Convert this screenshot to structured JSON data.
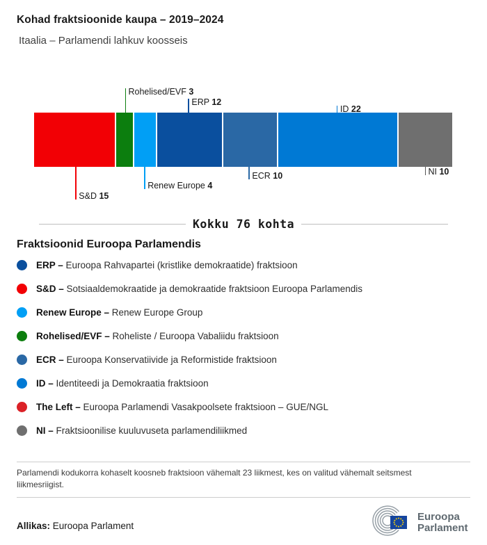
{
  "header": {
    "title": "Kohad fraktsioonide kaupa – 2019–2024",
    "subtitle": "Itaalia – Parlamendi lahkuv koosseis"
  },
  "chart_data": {
    "type": "bar",
    "subtype": "horizontal-stacked",
    "title": "Kohad fraktsioonide kaupa – 2019–2024",
    "total_seats": 76,
    "total_label": "Kokku 76 kohta",
    "segments": [
      {
        "group": "S&D",
        "seats": 15,
        "color": "#F20005",
        "label_side": "below"
      },
      {
        "group": "Rohelised/EVF",
        "seats": 3,
        "color": "#0C7E0E",
        "label_side": "above"
      },
      {
        "group": "Renew Europe",
        "seats": 4,
        "color": "#019FF5",
        "label_side": "below"
      },
      {
        "group": "ERP",
        "seats": 12,
        "color": "#0A4F9E",
        "label_side": "above"
      },
      {
        "group": "ECR",
        "seats": 10,
        "color": "#2A68A5",
        "label_side": "below"
      },
      {
        "group": "ID",
        "seats": 22,
        "color": "#0079D4",
        "label_side": "above"
      },
      {
        "group": "NI",
        "seats": 10,
        "color": "#6F6F6F",
        "label_side": "below",
        "line_color": "#555555"
      }
    ]
  },
  "legend": {
    "heading": "Fraktsioonid Euroopa Parlamendis",
    "items": [
      {
        "name": "ERP – ",
        "desc": "Euroopa Rahvapartei (kristlike demokraatide) fraktsioon",
        "color": "#0A4F9E"
      },
      {
        "name": "S&D – ",
        "desc": "Sotsiaaldemokraatide ja demokraatide fraktsioon Euroopa Parlamendis",
        "color": "#F20005"
      },
      {
        "name": "Renew Europe – ",
        "desc": "Renew Europe Group",
        "color": "#019FF5"
      },
      {
        "name": "Rohelised/EVF – ",
        "desc": "Roheliste / Euroopa Vabaliidu fraktsioon",
        "color": "#0C7E0E"
      },
      {
        "name": "ECR – ",
        "desc": "Euroopa Konservatiivide ja Reformistide fraktsioon",
        "color": "#2A68A5"
      },
      {
        "name": "ID – ",
        "desc": "Identiteedi ja Demokraatia fraktsioon",
        "color": "#0079D4"
      },
      {
        "name": "The Left – ",
        "desc": "Euroopa Parlamendi Vasakpoolsete fraktsioon – GUE/NGL",
        "color": "#DB2127"
      },
      {
        "name": "NI – ",
        "desc": "Fraktsioonilise kuuluvuseta parlamendiliikmed",
        "color": "#6F6F6F"
      }
    ]
  },
  "footnote": "Parlamendi kodukorra kohaselt koosneb fraktsioon vähemalt 23 liikmest, kes on valitud vähemalt seitsmest liikmesriigist.",
  "source": {
    "label": "Allikas:",
    "value": " Euroopa Parlament"
  },
  "logo": {
    "line1": "Euroopa",
    "line2": "Parlament"
  }
}
